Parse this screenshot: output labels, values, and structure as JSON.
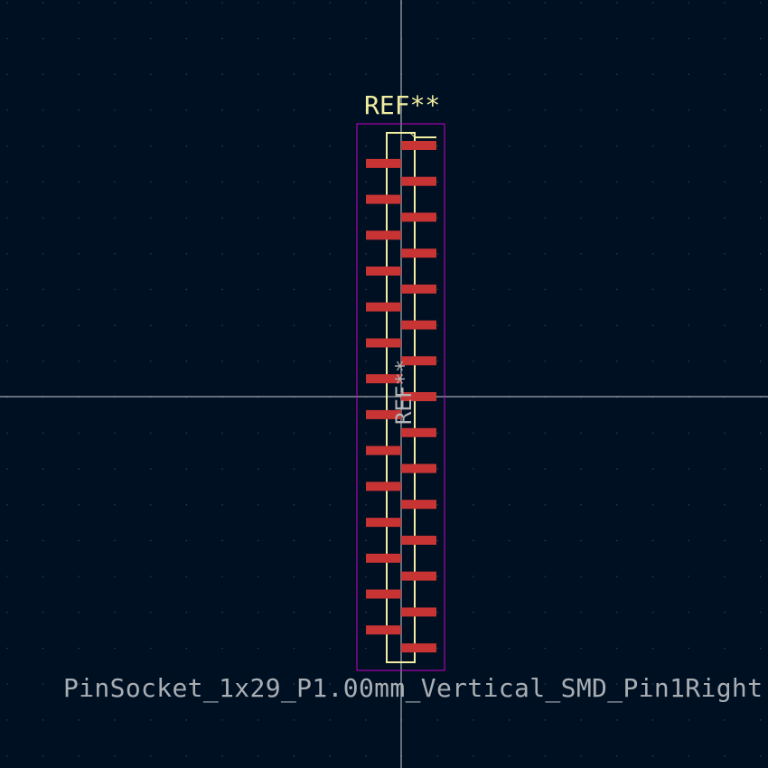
{
  "colors": {
    "background": "#001023",
    "grid": "#3a4a5c",
    "axes": "#c8ccd0",
    "courtyard": "#c800c8",
    "silkscreen": "#f2eda1",
    "fab": "#b4b4b4",
    "pad": "#c83434",
    "value_text": "#a9aeb3"
  },
  "reference_top": "REF**",
  "reference_fab": "REF**",
  "footprint_value": "PinSocket_1x29_P1.00mm_Vertical_SMD_Pin1Right",
  "pads": {
    "pin_count": 29,
    "pin1_side": "right"
  }
}
